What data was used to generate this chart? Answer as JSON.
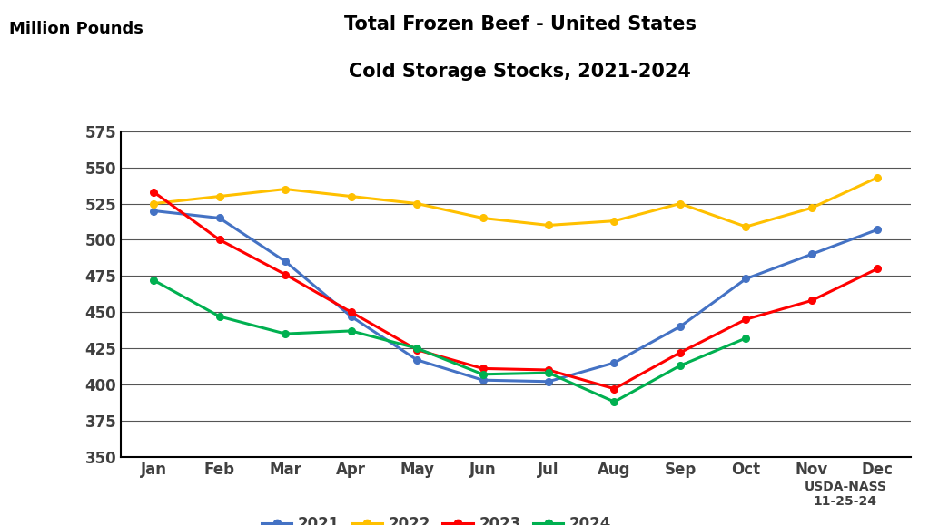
{
  "title_line1": "Total Frozen Beef - United States",
  "title_line2": "Cold Storage Stocks, 2021-2024",
  "ylabel": "Million Pounds",
  "months": [
    "Jan",
    "Feb",
    "Mar",
    "Apr",
    "May",
    "Jun",
    "Jul",
    "Aug",
    "Sep",
    "Oct",
    "Nov",
    "Dec"
  ],
  "series": {
    "2021": [
      520,
      515,
      485,
      447,
      417,
      403,
      402,
      415,
      440,
      473,
      490,
      507
    ],
    "2022": [
      525,
      530,
      535,
      530,
      525,
      515,
      510,
      513,
      525,
      509,
      522,
      543
    ],
    "2023": [
      533,
      500,
      476,
      450,
      424,
      411,
      410,
      397,
      422,
      445,
      458,
      480
    ],
    "2024": [
      472,
      447,
      435,
      437,
      425,
      407,
      408,
      388,
      413,
      432,
      null,
      null
    ]
  },
  "colors": {
    "2021": "#4472C4",
    "2022": "#FFC000",
    "2023": "#FF0000",
    "2024": "#00B050"
  },
  "ylim": [
    350,
    575
  ],
  "yticks": [
    350,
    375,
    400,
    425,
    450,
    475,
    500,
    525,
    550,
    575
  ],
  "annotation": "USDA-NASS\n11-25-24",
  "background_color": "#FFFFFF",
  "grid_color": "#000000",
  "title_fontsize": 15,
  "axis_label_fontsize": 13,
  "tick_fontsize": 12,
  "legend_fontsize": 12
}
